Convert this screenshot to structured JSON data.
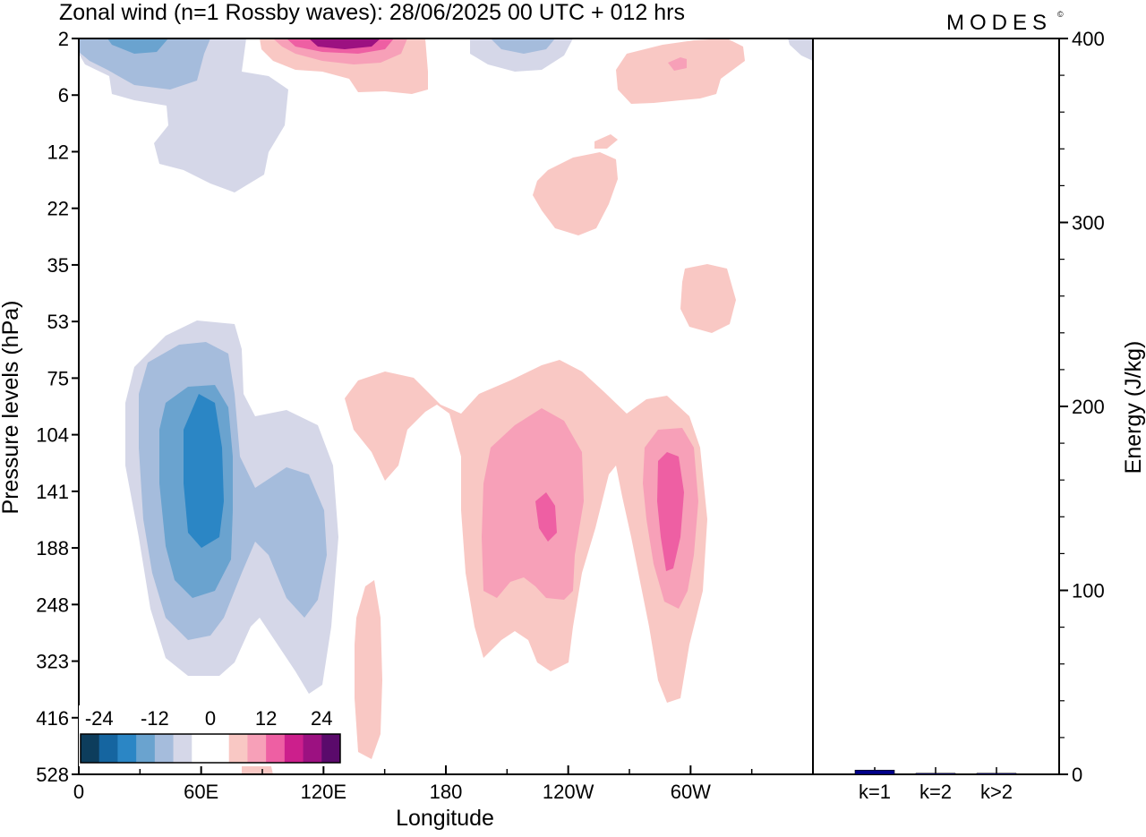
{
  "title": "Zonal wind (n=1 Rossby waves):  28/06/2025  00 UTC  + 012 hrs",
  "logo": "MODES",
  "logo_mark": "©",
  "chart_data": [
    {
      "type": "heatmap",
      "xlabel": "Longitude",
      "ylabel": "Pressure levels (hPa)",
      "x_ticks": [
        "0",
        "60E",
        "120E",
        "180",
        "120W",
        "60W"
      ],
      "y_ticks": [
        "2",
        "6",
        "12",
        "22",
        "35",
        "53",
        "75",
        "104",
        "141",
        "188",
        "248",
        "323",
        "416",
        "528"
      ],
      "colorbar": {
        "labels": [
          "-24",
          "-12",
          "0",
          "12",
          "24"
        ],
        "colors": [
          "#0d3d5c",
          "#1565a0",
          "#2b86c5",
          "#6aa3cf",
          "#a5bcdc",
          "#d5d7e8",
          "#ffffff",
          "#ffffff",
          "#f9c8c4",
          "#f7a0b8",
          "#ee5fa3",
          "#cc1f8c",
          "#9c1181",
          "#5a0a6b"
        ]
      },
      "colors": {
        "neg1": "#d5d7e8",
        "neg2": "#a5bcdc",
        "neg3": "#6aa3cf",
        "neg4": "#2b86c5",
        "pos1": "#f9c8c4",
        "pos2": "#f7a0b8",
        "pos3": "#ee5fa3",
        "pos4": "#cc1f8c",
        "pos5": "#9c1181"
      }
    },
    {
      "type": "bar",
      "categories": [
        "k=1",
        "k=2",
        "k>2"
      ],
      "values": [
        2.3,
        0.3,
        0.5
      ],
      "ylabel": "Energy (J/kg)",
      "ylim": [
        0,
        400
      ],
      "y_ticks": [
        0,
        100,
        200,
        300,
        400
      ],
      "bar_color": "#00008b"
    }
  ]
}
